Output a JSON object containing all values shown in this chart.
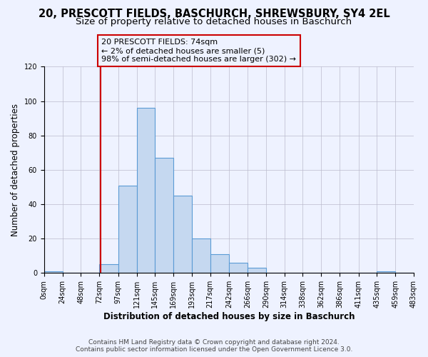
{
  "title": "20, PRESCOTT FIELDS, BASCHURCH, SHREWSBURY, SY4 2EL",
  "subtitle": "Size of property relative to detached houses in Baschurch",
  "xlabel": "Distribution of detached houses by size in Baschurch",
  "ylabel": "Number of detached properties",
  "bin_edges": [
    0,
    24,
    48,
    72,
    97,
    121,
    145,
    169,
    193,
    217,
    242,
    266,
    290,
    314,
    338,
    362,
    386,
    411,
    435,
    459,
    483
  ],
  "bar_heights": [
    1,
    0,
    0,
    5,
    51,
    96,
    67,
    45,
    20,
    11,
    6,
    3,
    0,
    0,
    0,
    0,
    0,
    0,
    1,
    0
  ],
  "tick_labels": [
    "0sqm",
    "24sqm",
    "48sqm",
    "72sqm",
    "97sqm",
    "121sqm",
    "145sqm",
    "169sqm",
    "193sqm",
    "217sqm",
    "242sqm",
    "266sqm",
    "290sqm",
    "314sqm",
    "338sqm",
    "362sqm",
    "386sqm",
    "411sqm",
    "435sqm",
    "459sqm",
    "483sqm"
  ],
  "bar_color": "#C5D8F0",
  "bar_edge_color": "#5B9BD5",
  "vline_x": 74,
  "vline_color": "#cc0000",
  "annotation_box_text": "20 PRESCOTT FIELDS: 74sqm\n← 2% of detached houses are smaller (5)\n98% of semi-detached houses are larger (302) →",
  "annotation_box_color": "#cc0000",
  "ylim": [
    0,
    120
  ],
  "yticks": [
    0,
    20,
    40,
    60,
    80,
    100,
    120
  ],
  "footer_line1": "Contains HM Land Registry data © Crown copyright and database right 2024.",
  "footer_line2": "Contains public sector information licensed under the Open Government Licence 3.0.",
  "background_color": "#EEF2FF",
  "plot_bg_color": "#EEF2FF",
  "grid_color": "#bbbbcc",
  "title_fontsize": 10.5,
  "subtitle_fontsize": 9.5,
  "axis_label_fontsize": 8.5,
  "tick_fontsize": 7,
  "footer_fontsize": 6.5,
  "annot_fontsize": 8
}
